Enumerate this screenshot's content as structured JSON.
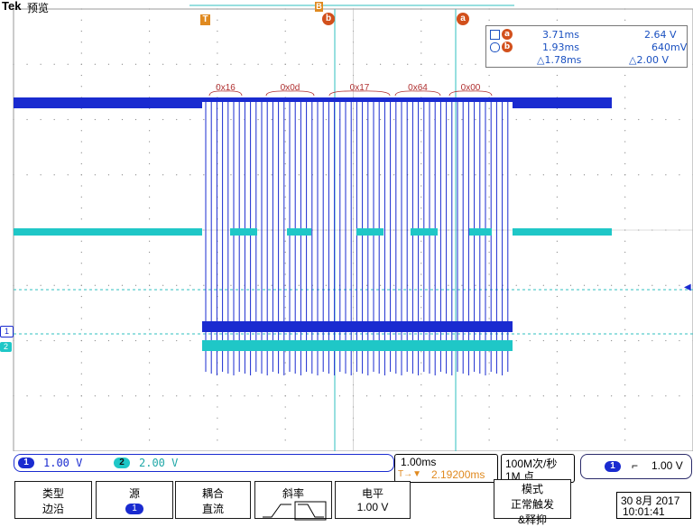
{
  "header": {
    "brand": "Tek",
    "mode": "预览"
  },
  "markers": {
    "trigger_glyph": "T",
    "position_glyph": "B",
    "cursor_a": "a",
    "cursor_b": "b"
  },
  "cursor_readout": {
    "a_time": "3.71ms",
    "a_volt": "2.64 V",
    "b_time": "1.93ms",
    "b_volt": "640mV",
    "delta_time": "△1.78ms",
    "delta_volt": "△2.00 V"
  },
  "bus_labels": [
    "0x16",
    "0x0d",
    "0x17",
    "0x64",
    "0x00"
  ],
  "channels": {
    "ch1": {
      "label": "1",
      "scale": "1.00 V",
      "color": "#1a2bd0"
    },
    "ch2": {
      "label": "2",
      "scale": "2.00 V",
      "color": "#1fc7c7"
    }
  },
  "timebase": {
    "scale": "1.00ms",
    "trigger_pos": "2.19200ms",
    "trigger_pos_prefix": "T→▼"
  },
  "acquisition": {
    "rate": "100M次/秒",
    "record": "1M 点"
  },
  "trigger": {
    "source": "1",
    "slope": "⌐",
    "level": "1.00 V"
  },
  "menu": {
    "type": {
      "l1": "类型",
      "l2": "边沿"
    },
    "source": {
      "l1": "源",
      "l2": "1"
    },
    "coupling": {
      "l1": "耦合",
      "l2": "直流"
    },
    "slope": {
      "l1": "斜率"
    },
    "level": {
      "l1": "电平",
      "l2": "1.00 V"
    },
    "mode": {
      "l1": "模式",
      "l2": "正常触发",
      "l3": "&释抑"
    }
  },
  "datetime": {
    "date": "30 8月 2017",
    "time": "10:01:41"
  },
  "colors": {
    "ch1": "#1a2bd0",
    "ch2": "#1fc7c7",
    "grid": "#9a9a9a",
    "cursor": "#2fbfbf",
    "marker": "#e07020",
    "bus": "#b03030"
  }
}
